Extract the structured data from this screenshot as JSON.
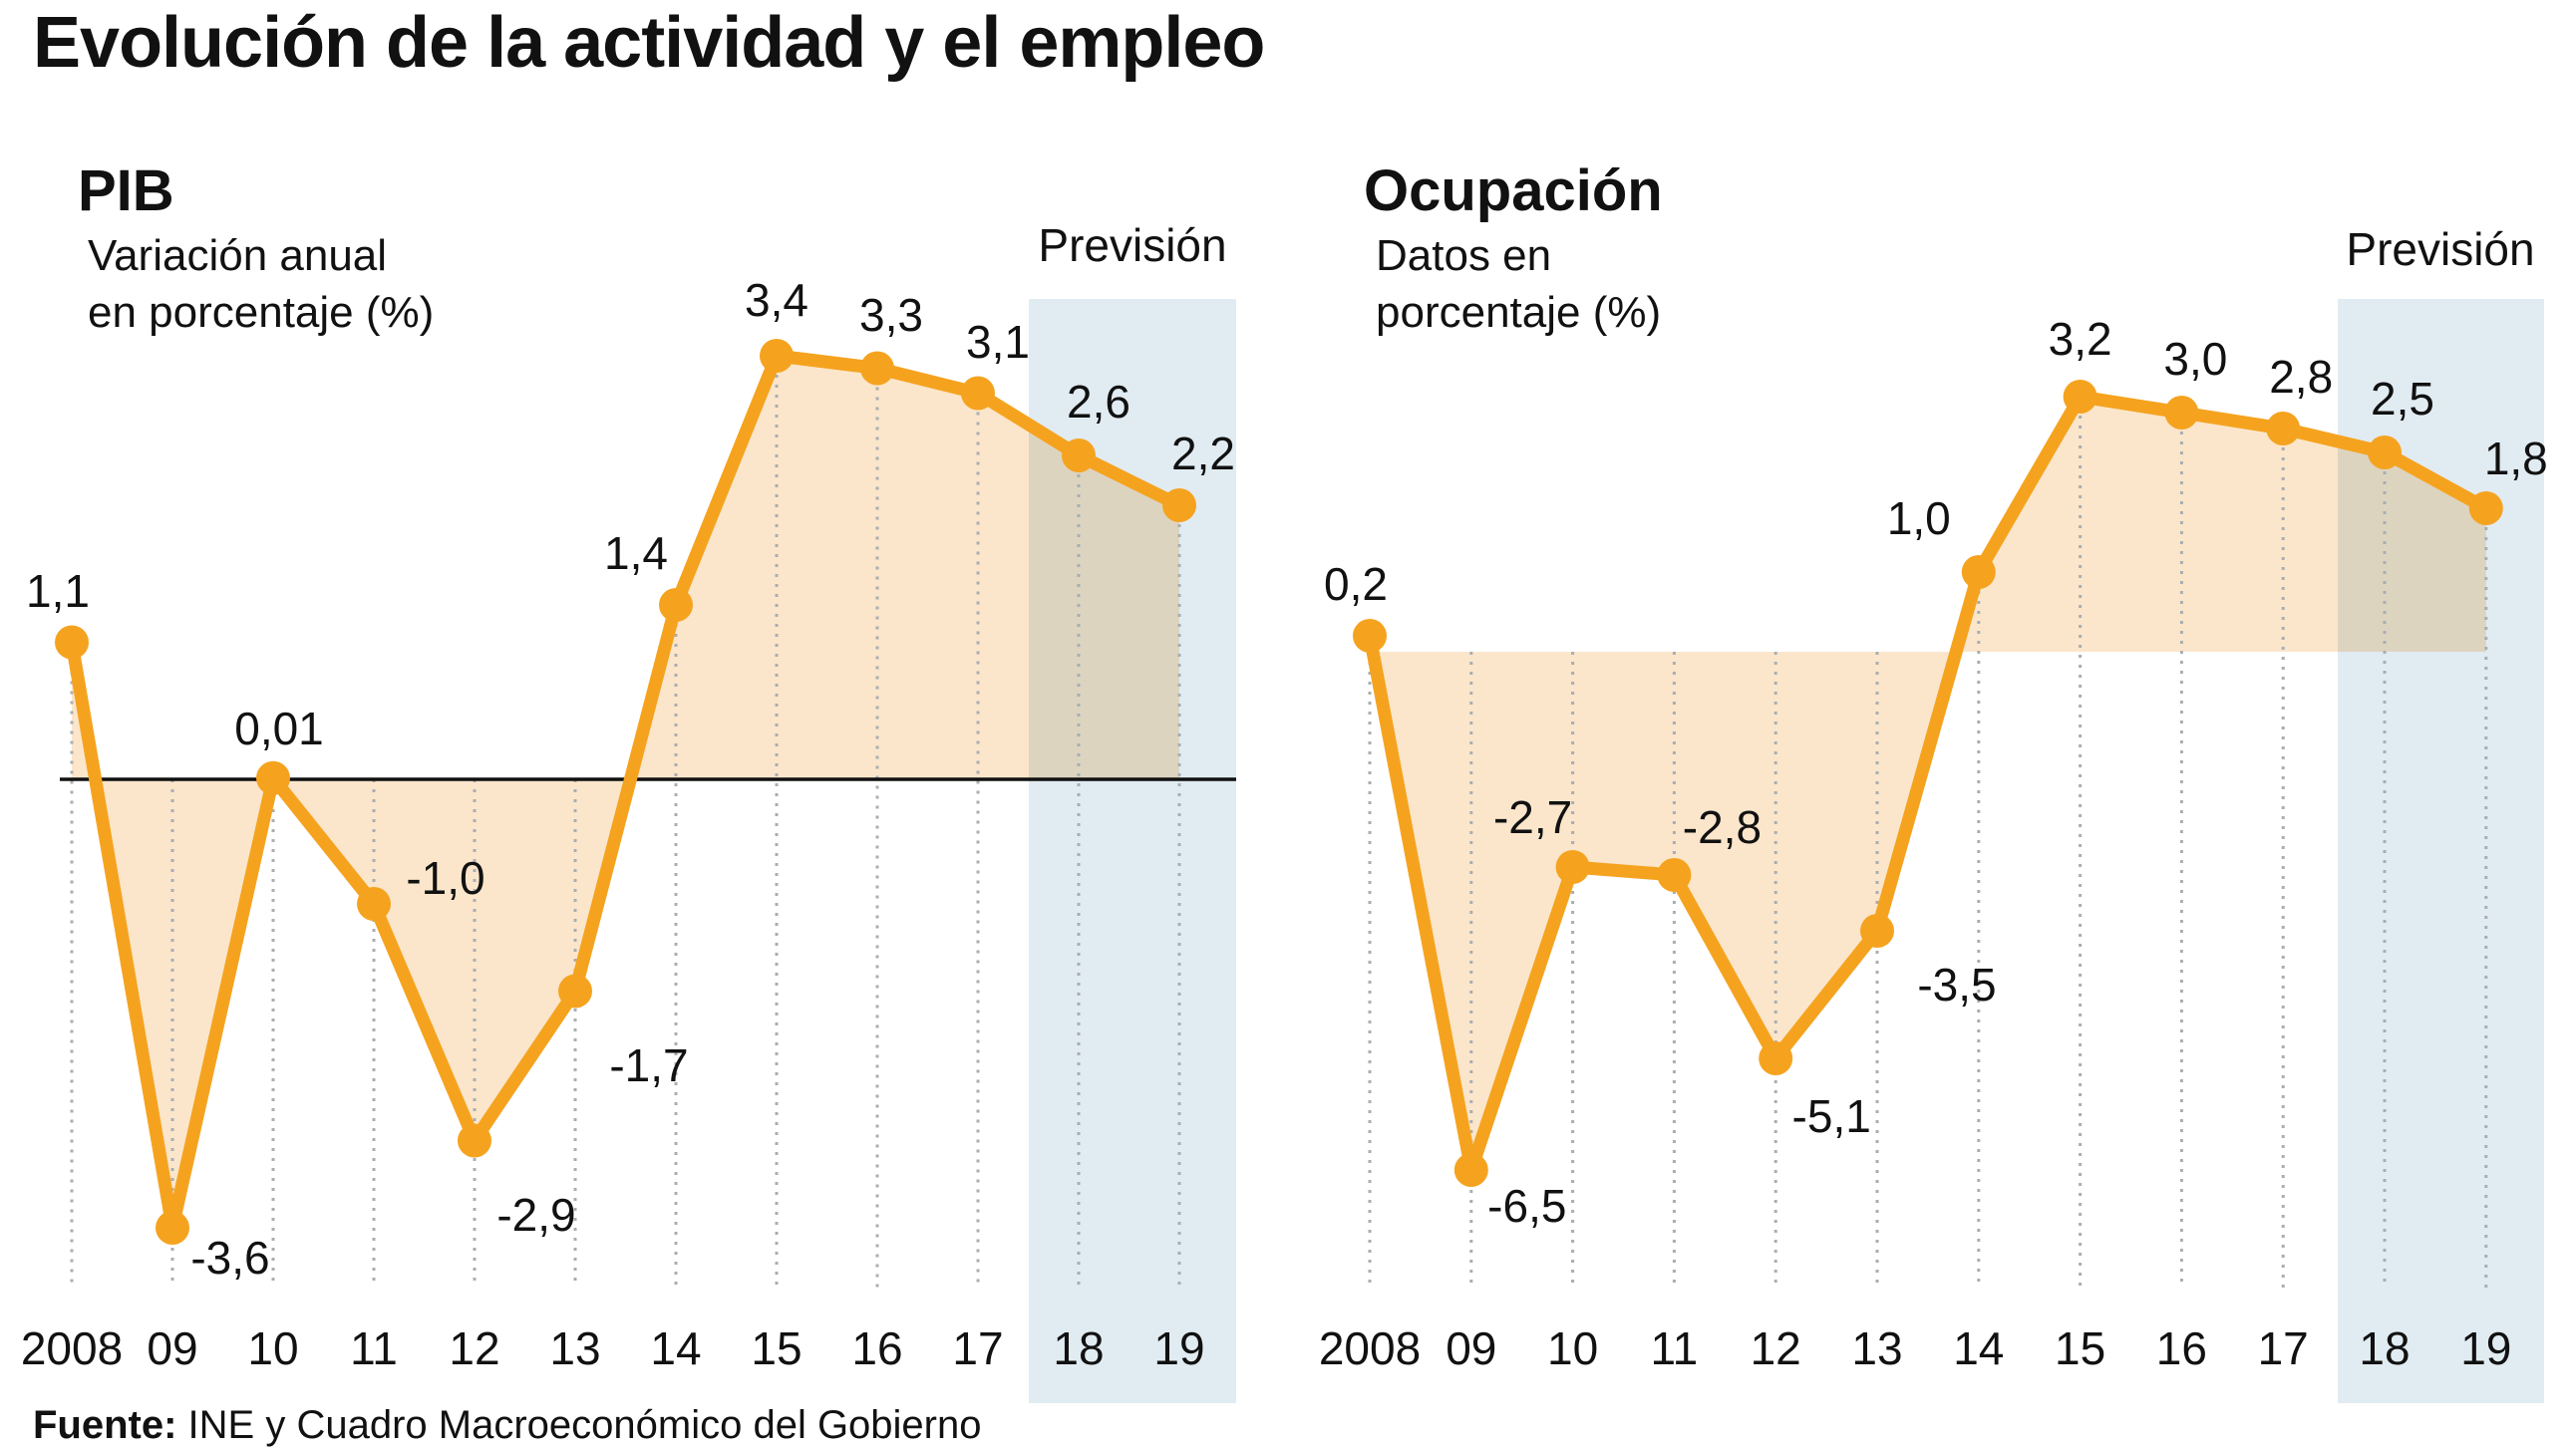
{
  "title": "Evolución de la actividad y el empleo",
  "source": {
    "label": "Fuente:",
    "text": " INE y Cuadro Macroeconómico del Gobierno"
  },
  "colors": {
    "accent_orange": "#F5A31F",
    "area_fill": "#FBE6CB",
    "forecast_bg": "#E1EBF2",
    "dotted_line": "#A9AEB2",
    "zero_line": "#111111",
    "text": "#111111"
  },
  "chart_data": [
    {
      "id": "pib",
      "type": "line",
      "title": "PIB",
      "subtitle_lines": [
        "Variación anual",
        "en porcentaje (%)"
      ],
      "forecast_label": "Previsión",
      "forecast_years": [
        "18",
        "19"
      ],
      "x_labels": [
        "2008",
        "09",
        "10",
        "11",
        "12",
        "13",
        "14",
        "15",
        "16",
        "17",
        "18",
        "19"
      ],
      "values": [
        1.1,
        -3.6,
        0.01,
        -1.0,
        -2.9,
        -1.7,
        1.4,
        3.4,
        3.3,
        3.1,
        2.6,
        2.2
      ],
      "value_labels": [
        "1,1",
        "-3,6",
        "0,01",
        "-1,0",
        "-2,9",
        "-1,7",
        "1,4",
        "3,4",
        "3,3",
        "3,1",
        "2,6",
        "2,2"
      ],
      "baseline": 0,
      "area_fill": true,
      "zero_axis_line": true
    },
    {
      "id": "ocupacion",
      "type": "line",
      "title": "Ocupación",
      "subtitle_lines": [
        "Datos en",
        "porcentaje (%)"
      ],
      "forecast_label": "Previsión",
      "forecast_years": [
        "18",
        "19"
      ],
      "x_labels": [
        "2008",
        "09",
        "10",
        "11",
        "12",
        "13",
        "14",
        "15",
        "16",
        "17",
        "18",
        "19"
      ],
      "values": [
        0.2,
        -6.5,
        -2.7,
        -2.8,
        -5.1,
        -3.5,
        1.0,
        3.2,
        3.0,
        2.8,
        2.5,
        1.8
      ],
      "value_labels": [
        "0,2",
        "-6,5",
        "-2,7",
        "-2,8",
        "-5,1",
        "-3,5",
        "1,0",
        "3,2",
        "3,0",
        "2,8",
        "2,5",
        "1,8"
      ],
      "baseline": 0,
      "area_fill": true,
      "zero_axis_line": false
    }
  ]
}
